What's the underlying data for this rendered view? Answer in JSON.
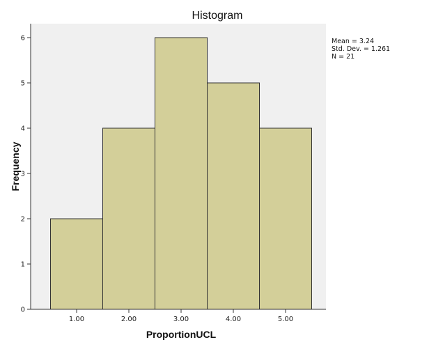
{
  "chart_data": {
    "type": "bar",
    "title": "Histogram",
    "xlabel": "ProportionUCL",
    "ylabel": "Frequency",
    "categories": [
      "1.00",
      "2.00",
      "3.00",
      "4.00",
      "5.00"
    ],
    "values": [
      2,
      4,
      6,
      5,
      4
    ],
    "ylim": [
      0,
      6
    ],
    "yticks": [
      "0",
      "1",
      "2",
      "3",
      "4",
      "5",
      "6"
    ],
    "grid": false,
    "colors": {
      "bar_fill": "#d3cf99",
      "bar_stroke": "#333333",
      "plot_bg": "#f0f0f0"
    }
  },
  "stats": {
    "mean": "Mean = 3.24",
    "std_dev": "Std. Dev. = 1.261",
    "n": "N = 21"
  }
}
